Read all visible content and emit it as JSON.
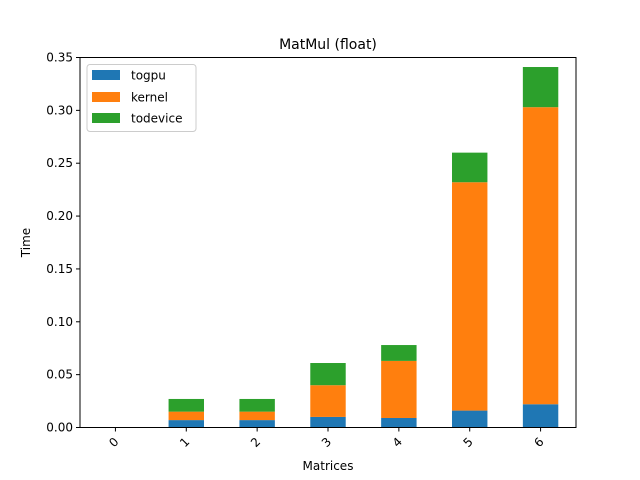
{
  "chart_data": {
    "type": "bar",
    "stacked": true,
    "title": "MatMul (float)",
    "xlabel": "Matrices",
    "ylabel": "Time",
    "categories": [
      "0",
      "1",
      "2",
      "3",
      "4",
      "5",
      "6"
    ],
    "ylim": [
      0,
      0.35
    ],
    "yticks": [
      "0.00",
      "0.05",
      "0.10",
      "0.15",
      "0.20",
      "0.25",
      "0.30",
      "0.35"
    ],
    "legend_position": "top-left",
    "grid": false,
    "series": [
      {
        "name": "togpu",
        "color": "#1f77b4",
        "values": [
          0.0,
          0.007,
          0.007,
          0.01,
          0.009,
          0.016,
          0.022
        ]
      },
      {
        "name": "kernel",
        "color": "#ff7f0e",
        "values": [
          0.0,
          0.008,
          0.008,
          0.03,
          0.054,
          0.216,
          0.281
        ]
      },
      {
        "name": "todevice",
        "color": "#2ca02c",
        "values": [
          0.0,
          0.012,
          0.012,
          0.021,
          0.015,
          0.028,
          0.038
        ]
      }
    ]
  }
}
